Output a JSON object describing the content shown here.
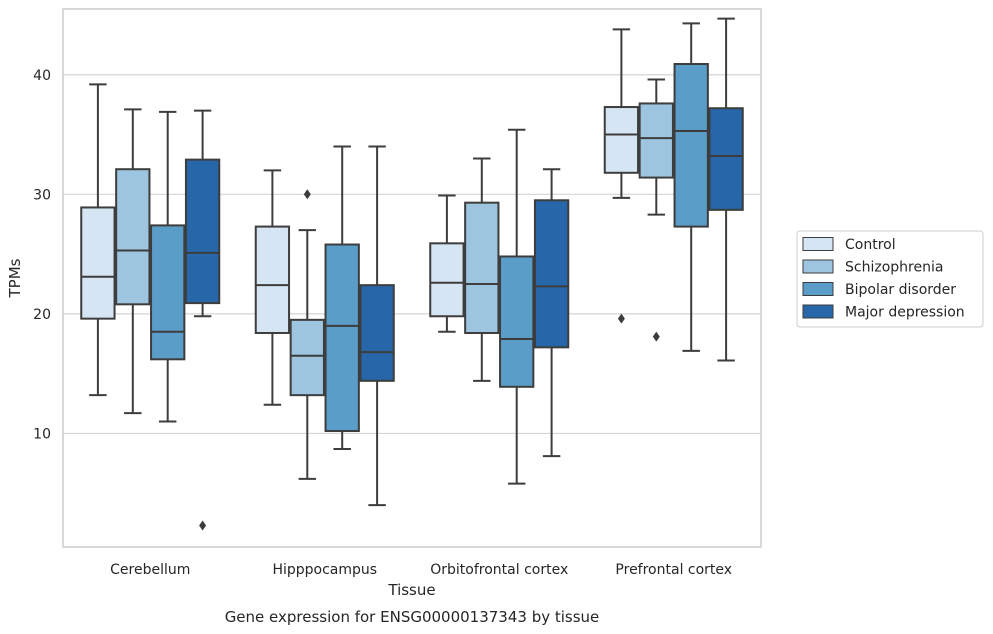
{
  "caption": "Gene expression for ENSG00000137343 by tissue",
  "chart_data": {
    "type": "box",
    "xlabel": "Tissue",
    "ylabel": "TPMs",
    "ylim": [
      0.5,
      45.5
    ],
    "yticks": [
      10,
      20,
      30,
      40
    ],
    "grid": "horizontal",
    "legend_position": "right",
    "categories": [
      "Cerebellum",
      "Hipppocampus",
      "Orbitofrontal cortex",
      "Prefrontal cortex"
    ],
    "series": [
      {
        "name": "Control",
        "color": "#d6e5f3",
        "boxes": [
          {
            "whislo": 13.2,
            "q1": 19.6,
            "med": 23.1,
            "q3": 28.9,
            "whishi": 39.2,
            "fliers": []
          },
          {
            "whislo": 12.4,
            "q1": 18.4,
            "med": 22.4,
            "q3": 27.3,
            "whishi": 32.0,
            "fliers": []
          },
          {
            "whislo": 18.5,
            "q1": 19.8,
            "med": 22.6,
            "q3": 25.9,
            "whishi": 29.9,
            "fliers": []
          },
          {
            "whislo": 29.7,
            "q1": 31.8,
            "med": 35.0,
            "q3": 37.3,
            "whishi": 43.8,
            "fliers": [
              19.6
            ]
          }
        ]
      },
      {
        "name": "Schizophrenia",
        "color": "#9dc5df",
        "boxes": [
          {
            "whislo": 11.7,
            "q1": 20.8,
            "med": 25.3,
            "q3": 32.1,
            "whishi": 37.1,
            "fliers": []
          },
          {
            "whislo": 6.2,
            "q1": 13.2,
            "med": 16.5,
            "q3": 19.5,
            "whishi": 27.0,
            "fliers": [
              30.0
            ]
          },
          {
            "whislo": 14.4,
            "q1": 18.4,
            "med": 22.5,
            "q3": 29.3,
            "whishi": 33.0,
            "fliers": []
          },
          {
            "whislo": 28.3,
            "q1": 31.4,
            "med": 34.7,
            "q3": 37.6,
            "whishi": 39.6,
            "fliers": [
              18.1
            ]
          }
        ]
      },
      {
        "name": "Bipolar disorder",
        "color": "#5a9dc9",
        "boxes": [
          {
            "whislo": 11.0,
            "q1": 16.2,
            "med": 18.5,
            "q3": 27.4,
            "whishi": 36.9,
            "fliers": []
          },
          {
            "whislo": 8.7,
            "q1": 10.2,
            "med": 19.0,
            "q3": 25.8,
            "whishi": 34.0,
            "fliers": []
          },
          {
            "whislo": 5.8,
            "q1": 13.9,
            "med": 17.9,
            "q3": 24.8,
            "whishi": 35.4,
            "fliers": []
          },
          {
            "whislo": 16.9,
            "q1": 27.3,
            "med": 35.3,
            "q3": 40.9,
            "whishi": 44.3,
            "fliers": []
          }
        ]
      },
      {
        "name": "Major depression",
        "color": "#2767a9",
        "boxes": [
          {
            "whislo": 19.8,
            "q1": 20.9,
            "med": 25.1,
            "q3": 32.9,
            "whishi": 37.0,
            "fliers": [
              2.3
            ]
          },
          {
            "whislo": 4.0,
            "q1": 14.4,
            "med": 16.8,
            "q3": 22.4,
            "whishi": 34.0,
            "fliers": []
          },
          {
            "whislo": 8.1,
            "q1": 17.2,
            "med": 22.3,
            "q3": 29.5,
            "whishi": 32.1,
            "fliers": []
          },
          {
            "whislo": 16.1,
            "q1": 28.7,
            "med": 33.2,
            "q3": 37.2,
            "whishi": 44.7,
            "fliers": []
          }
        ]
      }
    ]
  }
}
